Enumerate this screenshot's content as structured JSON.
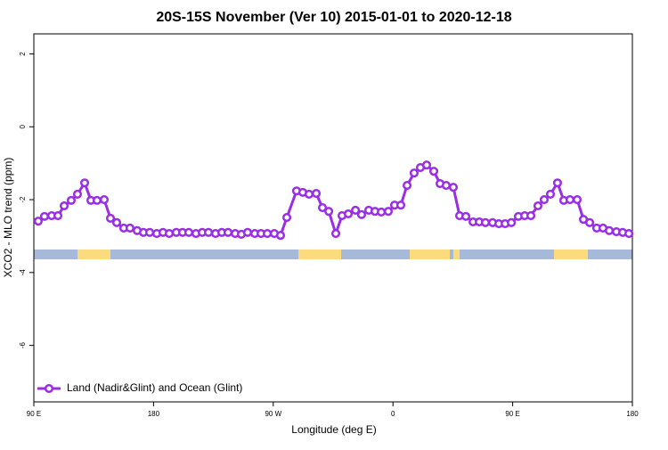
{
  "chart_data": {
    "type": "line",
    "title": "20S-15S November (Ver 10)   2015-01-01 to 2020-12-18",
    "x_label": "Longitude (deg E)",
    "y_label": "XCO2 - MLO trend (ppm)",
    "xlim": [
      90,
      540
    ],
    "ylim": [
      -7.55,
      2.55
    ],
    "xticks": [
      {
        "value": 90,
        "label": "90 E"
      },
      180,
      {
        "value": 270,
        "label": "90 W"
      },
      {
        "value": 360,
        "label": "0"
      },
      {
        "value": 450,
        "label": "90 E"
      },
      {
        "value": 540,
        "label": "180"
      }
    ],
    "yticks": [
      2,
      0,
      -2,
      -4,
      -6
    ],
    "legend": "bottom-left",
    "series": [
      {
        "name": "Land (Nadir&Glint) and Ocean (Glint)",
        "color": "#9a2ee6",
        "x": [
          93.3,
          98,
          103.4,
          108.1,
          112.8,
          118.1,
          122.8,
          128.2,
          132.9,
          137.5,
          142.9,
          147.6,
          152.3,
          157.6,
          162.3,
          167.7,
          172.4,
          177.1,
          182.4,
          187.1,
          191.8,
          197.1,
          201.8,
          206.5,
          211.9,
          216.6,
          221.3,
          226.6,
          231.3,
          236,
          241.4,
          246,
          250.7,
          256.1,
          260.8,
          265.5,
          270.8,
          275.5,
          280.2,
          287.5,
          292.2,
          296.9,
          302.3,
          307,
          311.7,
          317,
          321.7,
          326.4,
          331.8,
          336.4,
          341.8,
          346.5,
          351.2,
          356.5,
          361.2,
          365.9,
          370.6,
          375.9,
          380.6,
          385.3,
          390.7,
          395.4,
          400,
          405.4,
          410.1,
          414.8,
          420.2,
          424.9,
          429.5,
          434.9,
          439.6,
          444.3,
          449,
          454.3,
          459,
          463.7,
          469,
          473.7,
          478.4,
          483.7,
          488.4,
          493.1,
          498.5,
          503.2,
          507.9,
          513.2,
          517.9,
          522.6,
          528,
          532.7,
          537.4
        ],
        "values": [
          -2.59,
          -2.46,
          -2.44,
          -2.44,
          -2.17,
          -2.02,
          -1.85,
          -1.54,
          -2.02,
          -2.02,
          -2.0,
          -2.51,
          -2.63,
          -2.78,
          -2.78,
          -2.85,
          -2.9,
          -2.9,
          -2.93,
          -2.9,
          -2.93,
          -2.9,
          -2.9,
          -2.9,
          -2.93,
          -2.9,
          -2.9,
          -2.93,
          -2.9,
          -2.9,
          -2.93,
          -2.95,
          -2.9,
          -2.93,
          -2.93,
          -2.93,
          -2.93,
          -2.98,
          -2.49,
          -1.76,
          -1.8,
          -1.85,
          -1.83,
          -2.22,
          -2.32,
          -2.93,
          -2.44,
          -2.39,
          -2.29,
          -2.41,
          -2.29,
          -2.32,
          -2.34,
          -2.32,
          -2.15,
          -2.15,
          -1.61,
          -1.27,
          -1.12,
          -1.05,
          -1.22,
          -1.56,
          -1.61,
          -1.66,
          -2.44,
          -2.46,
          -2.61,
          -2.61,
          -2.63,
          -2.63,
          -2.66,
          -2.66,
          -2.63,
          -2.46,
          -2.44,
          -2.44,
          -2.17,
          -2.0,
          -1.85,
          -1.54,
          -2.02,
          -2.0,
          -2.0,
          -2.54,
          -2.63,
          -2.78,
          -2.78,
          -2.85,
          -2.88,
          -2.9,
          -2.93
        ]
      }
    ]
  }
}
